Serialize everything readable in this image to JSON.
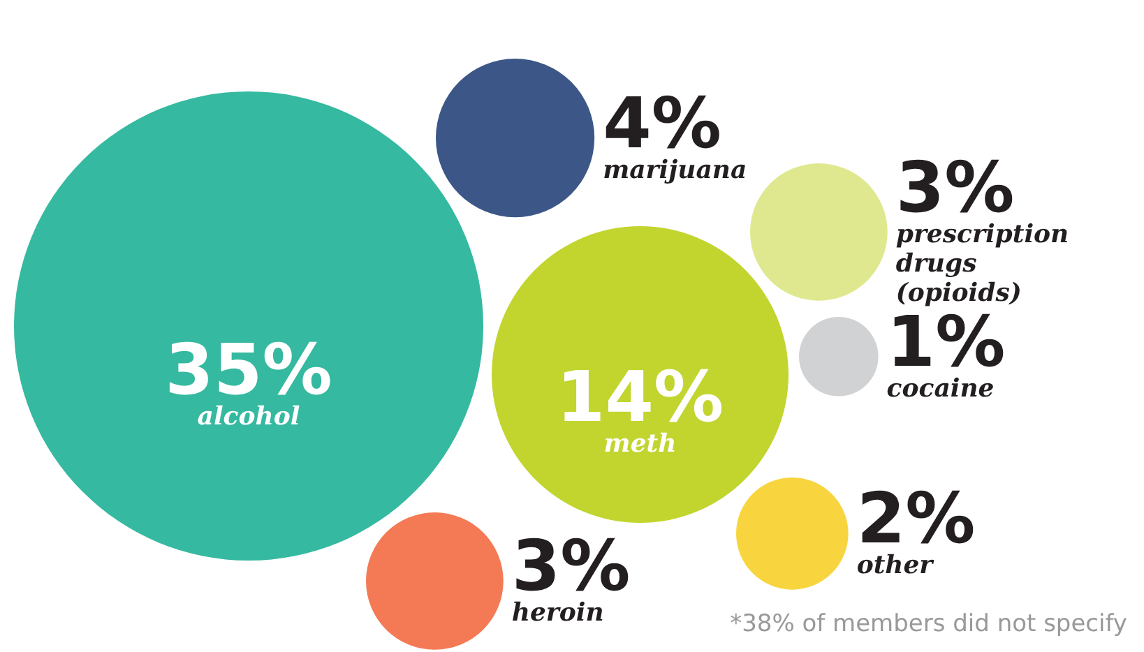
{
  "chart_data": {
    "type": "other",
    "categories": [
      "alcohol",
      "meth",
      "marijuana",
      "prescription drugs (opioids)",
      "heroin",
      "other",
      "cocaine"
    ],
    "values": [
      35,
      14,
      4,
      3,
      3,
      2,
      1
    ],
    "value_labels": [
      "35%",
      "14%",
      "4%",
      "3%",
      "3%",
      "2%",
      "1%"
    ],
    "colors": [
      "#35b9a0",
      "#c2d52f",
      "#3c5687",
      "#e0e88f",
      "#f47a55",
      "#f8d53e",
      "#d1d2d4"
    ],
    "annotations": [
      "*38% of members did not specify"
    ]
  }
}
